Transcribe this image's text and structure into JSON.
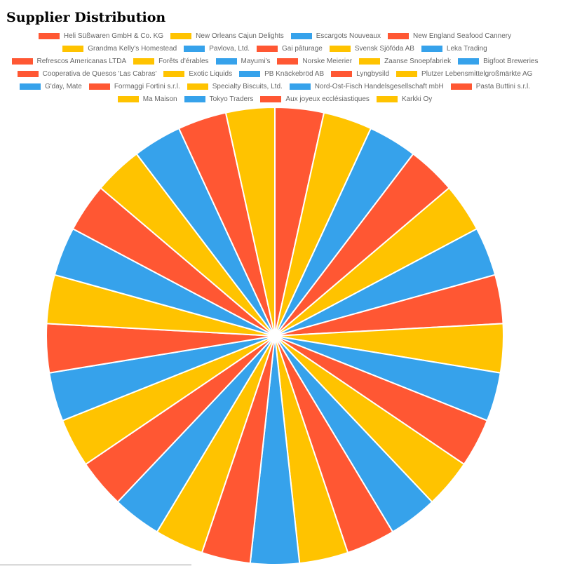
{
  "page": {
    "title": "Supplier Distribution"
  },
  "colors": {
    "red": "#FF5733",
    "yellow": "#FFC300",
    "blue": "#36A2EB"
  },
  "chart_data": {
    "type": "pie",
    "title": "Supplier Distribution",
    "legend_position": "top",
    "categories": [
      "Heli Süßwaren GmbH & Co. KG",
      "New Orleans Cajun Delights",
      "Escargots Nouveaux",
      "New England Seafood Cannery",
      "Grandma Kelly's Homestead",
      "Pavlova, Ltd.",
      "Gai pâturage",
      "Svensk Sjöföda AB",
      "Leka Trading",
      "Refrescos Americanas LTDA",
      "Forêts d'érables",
      "Mayumi's",
      "Norske Meierier",
      "Zaanse Snoepfabriek",
      "Bigfoot Breweries",
      "Cooperativa de Quesos 'Las Cabras'",
      "Exotic Liquids",
      "PB Knäckebröd AB",
      "Lyngbysild",
      "Plutzer Lebensmittelgroßmärkte AG",
      "G'day, Mate",
      "Formaggi Fortini s.r.l.",
      "Specialty Biscuits, Ltd.",
      "Nord-Ost-Fisch Handelsgesellschaft mbH",
      "Pasta Buttini s.r.l.",
      "Ma Maison",
      "Tokyo Traders",
      "Aux joyeux ecclésiastiques",
      "Karkki Oy"
    ],
    "values": [
      1,
      1,
      1,
      1,
      1,
      1,
      1,
      1,
      1,
      1,
      1,
      1,
      1,
      1,
      1,
      1,
      1,
      1,
      1,
      1,
      1,
      1,
      1,
      1,
      1,
      1,
      1,
      1,
      1
    ],
    "slice_colors": [
      "#FF5733",
      "#FFC300",
      "#36A2EB",
      "#FF5733",
      "#FFC300",
      "#36A2EB",
      "#FF5733",
      "#FFC300",
      "#36A2EB",
      "#FF5733",
      "#FFC300",
      "#36A2EB",
      "#FF5733",
      "#FFC300",
      "#36A2EB",
      "#FF5733",
      "#FFC300",
      "#36A2EB",
      "#FF5733",
      "#FFC300",
      "#36A2EB",
      "#FF5733",
      "#FFC300",
      "#36A2EB",
      "#FF5733",
      "#FFC300",
      "#36A2EB",
      "#FF5733",
      "#FFC300"
    ]
  }
}
